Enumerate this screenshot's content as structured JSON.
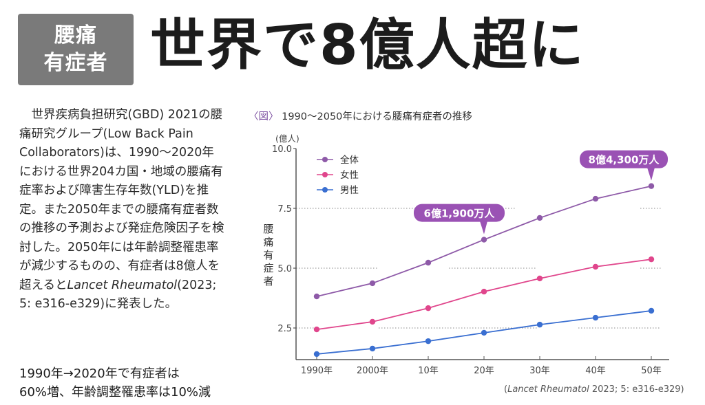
{
  "header": {
    "tag_line1": "腰痛",
    "tag_line2": "有症者",
    "headline": "世界で8億人超に"
  },
  "article": {
    "body_pre": "世界疾病負担研究(GBD) 2021の腰痛研究グループ(Low Back Pain Collaborators)は、1990〜2020年における世界204カ国・地域の腰痛有症率および障害生存年数(YLD)を推定。また2050年までの腰痛有症者数の推移の予測および発症危険因子を検討した。2050年には年齢調整罹患率が減少するものの、有症者は8億人を超えると",
    "journal": "Lancet Rheumatol",
    "body_post": "(2023; 5: e316-e329)に発表した。",
    "summary_line1": "1990年→2020年で有症者は",
    "summary_line2": "60%増、年齢調整罹患率は10%減"
  },
  "figure": {
    "mark": "〈図〉",
    "title": "1990〜2050年における腰痛有症者の推移",
    "source_open": "(",
    "source_journal": "Lancet Rheumatol",
    "source_rest": " 2023; 5: e316-e329)"
  },
  "colors": {
    "total": "#8e5aa8",
    "female": "#e0468c",
    "male": "#3a6fd1",
    "callout": "#9a52b4",
    "tag_bg": "#7a7a7a"
  },
  "chart_data": {
    "type": "line",
    "title": "1990〜2050年における腰痛有症者の推移",
    "xlabel": "",
    "ylabel": "腰痛有症者",
    "yunit": "(億人)",
    "categories": [
      "1990年",
      "2000年",
      "10年",
      "20年",
      "30年",
      "40年",
      "50年"
    ],
    "x": [
      1990,
      2000,
      2010,
      2020,
      2030,
      2040,
      2050
    ],
    "ylim": [
      0.85,
      10.0
    ],
    "yticks": [
      2.5,
      5.0,
      7.5,
      10.0
    ],
    "ytick_labels": [
      "2.5",
      "5.0",
      "7.5",
      "10.0"
    ],
    "grid": "dotted-partial",
    "legend_position": "top-left",
    "series": [
      {
        "name": "全体",
        "color_key": "total",
        "values": [
          3.82,
          4.37,
          5.23,
          6.19,
          7.1,
          7.9,
          8.43
        ]
      },
      {
        "name": "女性",
        "color_key": "female",
        "values": [
          2.44,
          2.76,
          3.33,
          4.02,
          4.57,
          5.06,
          5.37
        ]
      },
      {
        "name": "男性",
        "color_key": "male",
        "values": [
          1.41,
          1.64,
          1.95,
          2.3,
          2.64,
          2.93,
          3.22
        ]
      }
    ],
    "annotations": [
      {
        "text": "6億1,900万人",
        "series": 0,
        "index": 3
      },
      {
        "text": "8億4,300万人",
        "series": 0,
        "index": 6
      }
    ]
  }
}
